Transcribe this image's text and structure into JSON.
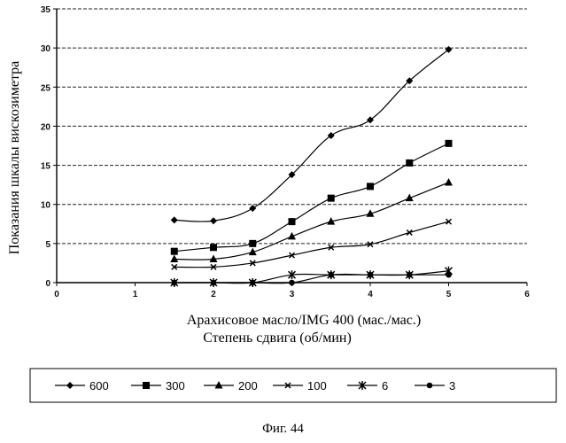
{
  "chart_data": {
    "type": "line",
    "ylabel": "Показания шкалы вискозиметра",
    "xlabel_line1": "Арахисовое масло/IMG 400 (мас./мас.)",
    "xlabel_line2": "Степень сдвига (об/мин)",
    "xlim": [
      0,
      6
    ],
    "ylim": [
      0,
      35
    ],
    "xticks": [
      0,
      1,
      2,
      3,
      4,
      5,
      6
    ],
    "yticks": [
      0,
      5,
      10,
      15,
      20,
      25,
      30,
      35
    ],
    "grid": "horizontal",
    "legend_position": "bottom",
    "series": [
      {
        "name": "600",
        "marker": "diamond",
        "x": [
          1.5,
          2.0,
          2.5,
          3.0,
          3.5,
          4.0,
          4.5,
          5.0
        ],
        "y": [
          8.0,
          7.9,
          9.5,
          13.8,
          18.8,
          20.8,
          25.8,
          29.8
        ]
      },
      {
        "name": "300",
        "marker": "square",
        "x": [
          1.5,
          2.0,
          2.5,
          3.0,
          3.5,
          4.0,
          4.5,
          5.0
        ],
        "y": [
          4.0,
          4.5,
          5.0,
          7.8,
          10.8,
          12.3,
          15.3,
          17.8
        ]
      },
      {
        "name": "200",
        "marker": "triangle",
        "x": [
          1.5,
          2.0,
          2.5,
          3.0,
          3.5,
          4.0,
          4.5,
          5.0
        ],
        "y": [
          3.0,
          3.0,
          3.9,
          5.9,
          7.8,
          8.8,
          10.8,
          12.8
        ]
      },
      {
        "name": "100",
        "marker": "cross",
        "x": [
          1.5,
          2.0,
          2.5,
          3.0,
          3.5,
          4.0,
          4.5,
          5.0
        ],
        "y": [
          2.0,
          2.0,
          2.5,
          3.5,
          4.5,
          4.9,
          6.4,
          7.8
        ]
      },
      {
        "name": "6",
        "marker": "asterisk",
        "x": [
          1.5,
          2.0,
          2.5,
          3.0,
          3.5,
          4.0,
          4.5,
          5.0
        ],
        "y": [
          0.0,
          0.0,
          0.0,
          1.0,
          1.0,
          1.0,
          1.0,
          1.5
        ]
      },
      {
        "name": "3",
        "marker": "circle",
        "x": [
          1.5,
          2.0,
          2.5,
          3.0,
          3.5,
          4.0,
          4.5,
          5.0
        ],
        "y": [
          0.0,
          0.0,
          0.0,
          0.0,
          1.0,
          1.0,
          1.0,
          1.0
        ]
      }
    ]
  },
  "caption": "Фиг. 44"
}
